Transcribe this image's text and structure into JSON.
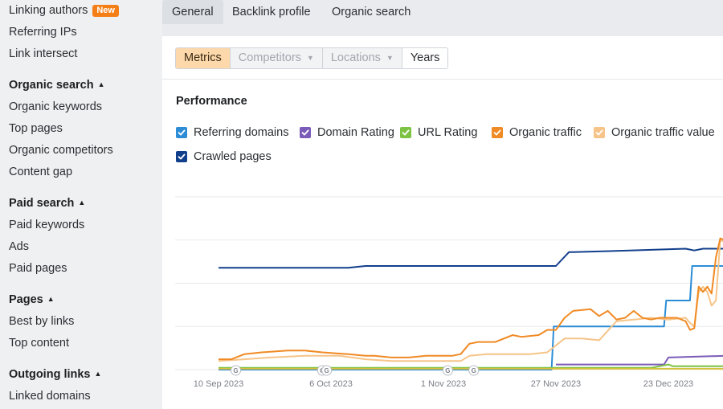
{
  "sidebar": {
    "linking_authors": "Linking authors",
    "new_badge": "New",
    "referring_ips": "Referring IPs",
    "link_intersect": "Link intersect",
    "organic_search_head": "Organic search",
    "organic_keywords": "Organic keywords",
    "top_pages": "Top pages",
    "organic_competitors": "Organic competitors",
    "content_gap": "Content gap",
    "paid_search_head": "Paid search",
    "paid_keywords": "Paid keywords",
    "ads": "Ads",
    "paid_pages": "Paid pages",
    "pages_head": "Pages",
    "best_by_links": "Best by links",
    "top_content": "Top content",
    "outgoing_links_head": "Outgoing links",
    "linked_domains": "Linked domains"
  },
  "tabs": [
    "General",
    "Backlink profile",
    "Organic search"
  ],
  "filters": {
    "metrics": "Metrics",
    "competitors": "Competitors",
    "locations": "Locations",
    "years": "Years"
  },
  "performance_title": "Performance",
  "legend": [
    {
      "label": "Referring domains",
      "color": "#2c8dd6",
      "checked": true
    },
    {
      "label": "Domain Rating",
      "color": "#7b5cb8",
      "checked": true
    },
    {
      "label": "URL Rating",
      "color": "#7cc243",
      "checked": true
    },
    {
      "label": "Organic traffic",
      "color": "#f08a24",
      "checked": true
    },
    {
      "label": "Organic traffic value",
      "color": "#f6c488",
      "checked": true
    },
    {
      "label": "Crawled pages",
      "color": "#123f8c",
      "checked": true
    }
  ],
  "chart_data": {
    "type": "line",
    "x_tick_labels": [
      "10 Sep 2023",
      "6 Oct 2023",
      "1 Nov 2023",
      "27 Nov 2023",
      "23 Dec 2023"
    ],
    "x_domain_days": [
      0,
      117
    ],
    "x_tick_days": [
      0,
      26,
      52,
      78,
      104
    ],
    "y_range": [
      0,
      100
    ],
    "grid": true,
    "annotation_marker": "G",
    "annotation_days": [
      4,
      24,
      25,
      53,
      59
    ],
    "series": [
      {
        "name": "Crawled pages",
        "color": "#123f8c",
        "points": [
          [
            0,
            59
          ],
          [
            30,
            59
          ],
          [
            34,
            60
          ],
          [
            60,
            60
          ],
          [
            78,
            60
          ],
          [
            81,
            68
          ],
          [
            82,
            68
          ],
          [
            95,
            69
          ],
          [
            108,
            70
          ],
          [
            110,
            69
          ],
          [
            112,
            70
          ],
          [
            117,
            70
          ]
        ]
      },
      {
        "name": "Referring domains",
        "color": "#2c8dd6",
        "points": [
          [
            0,
            0
          ],
          [
            77,
            0
          ],
          [
            77.5,
            25
          ],
          [
            103,
            25
          ],
          [
            103.5,
            40
          ],
          [
            109,
            40
          ],
          [
            109.5,
            60
          ],
          [
            117,
            60
          ]
        ]
      },
      {
        "name": "Organic traffic value",
        "color": "#f6c488",
        "points": [
          [
            0,
            5
          ],
          [
            6,
            6
          ],
          [
            12,
            7
          ],
          [
            20,
            8
          ],
          [
            28,
            8
          ],
          [
            34,
            6
          ],
          [
            40,
            5
          ],
          [
            50,
            5
          ],
          [
            56,
            5
          ],
          [
            58,
            8
          ],
          [
            62,
            9
          ],
          [
            68,
            9
          ],
          [
            72,
            9
          ],
          [
            76,
            10
          ],
          [
            80,
            18
          ],
          [
            84,
            18
          ],
          [
            88,
            17
          ],
          [
            92,
            28
          ],
          [
            96,
            29
          ],
          [
            100,
            30
          ],
          [
            104,
            29
          ],
          [
            108,
            30
          ],
          [
            109,
            27
          ],
          [
            110,
            25
          ],
          [
            111,
            45
          ],
          [
            112,
            48
          ],
          [
            113,
            45
          ],
          [
            114,
            37
          ],
          [
            115,
            40
          ],
          [
            116,
            75
          ],
          [
            117,
            74
          ]
        ]
      },
      {
        "name": "Organic traffic",
        "color": "#f08a24",
        "points": [
          [
            0,
            6
          ],
          [
            3,
            6
          ],
          [
            6,
            9
          ],
          [
            10,
            10
          ],
          [
            16,
            11
          ],
          [
            20,
            11
          ],
          [
            24,
            10
          ],
          [
            30,
            9
          ],
          [
            34,
            8
          ],
          [
            36,
            8
          ],
          [
            40,
            7
          ],
          [
            44,
            7
          ],
          [
            48,
            8
          ],
          [
            54,
            8
          ],
          [
            56,
            9
          ],
          [
            58,
            15
          ],
          [
            60,
            16
          ],
          [
            64,
            16
          ],
          [
            68,
            20
          ],
          [
            70,
            19
          ],
          [
            74,
            20
          ],
          [
            76,
            23
          ],
          [
            78,
            23
          ],
          [
            80,
            30
          ],
          [
            82,
            34
          ],
          [
            86,
            35
          ],
          [
            88,
            31
          ],
          [
            90,
            34
          ],
          [
            92,
            29
          ],
          [
            94,
            30
          ],
          [
            96,
            34
          ],
          [
            98,
            30
          ],
          [
            100,
            29
          ],
          [
            102,
            30
          ],
          [
            104,
            30
          ],
          [
            106,
            30
          ],
          [
            108,
            28
          ],
          [
            109,
            23
          ],
          [
            110,
            24
          ],
          [
            111,
            48
          ],
          [
            112,
            45
          ],
          [
            113,
            48
          ],
          [
            114,
            44
          ],
          [
            115,
            65
          ],
          [
            116,
            76
          ],
          [
            117,
            75
          ]
        ]
      },
      {
        "name": "Domain Rating",
        "color": "#7b5cb8",
        "points": [
          [
            78,
            3
          ],
          [
            90,
            3
          ],
          [
            100,
            3
          ],
          [
            103,
            3
          ],
          [
            104,
            7
          ],
          [
            117,
            8
          ]
        ]
      },
      {
        "name": "URL Rating",
        "color": "#7cc243",
        "points": [
          [
            0,
            1
          ],
          [
            40,
            1
          ],
          [
            60,
            1
          ],
          [
            80,
            1
          ],
          [
            100,
            1
          ],
          [
            104,
            3
          ],
          [
            105,
            2
          ],
          [
            117,
            2
          ]
        ]
      },
      {
        "name": "Baseline",
        "color": "#d4c13c",
        "points": [
          [
            0,
            0.5
          ],
          [
            117,
            0.5
          ]
        ]
      }
    ]
  }
}
